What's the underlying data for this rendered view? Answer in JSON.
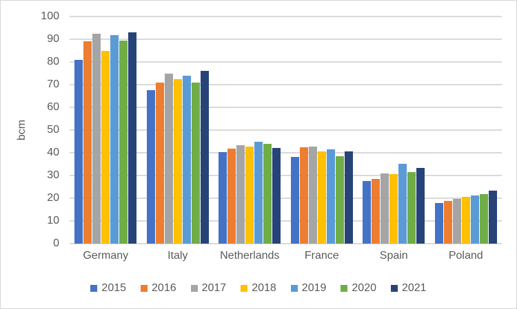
{
  "chart_data": {
    "type": "bar",
    "title": "",
    "xlabel": "",
    "ylabel": "bcm",
    "ylim": [
      0,
      100
    ],
    "ytick_step": 10,
    "grid": true,
    "legend_position": "bottom",
    "gridline_color": "#d9d9d9",
    "text_color": "#595959",
    "categories": [
      "Germany",
      "Italy",
      "Netherlands",
      "France",
      "Spain",
      "Poland"
    ],
    "series": [
      {
        "name": "2015",
        "color": "#4472C4",
        "values": [
          81.0,
          67.5,
          40.4,
          38.3,
          27.5,
          17.8
        ]
      },
      {
        "name": "2016",
        "color": "#ED7D31",
        "values": [
          89.0,
          71.0,
          41.7,
          42.3,
          28.5,
          18.7
        ]
      },
      {
        "name": "2017",
        "color": "#A5A5A5",
        "values": [
          92.3,
          75.0,
          43.4,
          42.7,
          30.8,
          19.8
        ]
      },
      {
        "name": "2018",
        "color": "#FFC000",
        "values": [
          85.0,
          72.5,
          42.7,
          40.5,
          30.5,
          20.6
        ]
      },
      {
        "name": "2019",
        "color": "#5B9BD5",
        "values": [
          91.7,
          74.0,
          44.9,
          41.5,
          35.1,
          21.2
        ]
      },
      {
        "name": "2020",
        "color": "#70AD47",
        "values": [
          89.4,
          71.0,
          43.9,
          38.4,
          31.4,
          21.8
        ]
      },
      {
        "name": "2021",
        "color": "#264478",
        "values": [
          93.0,
          76.0,
          42.1,
          40.5,
          33.3,
          23.4
        ]
      }
    ]
  }
}
